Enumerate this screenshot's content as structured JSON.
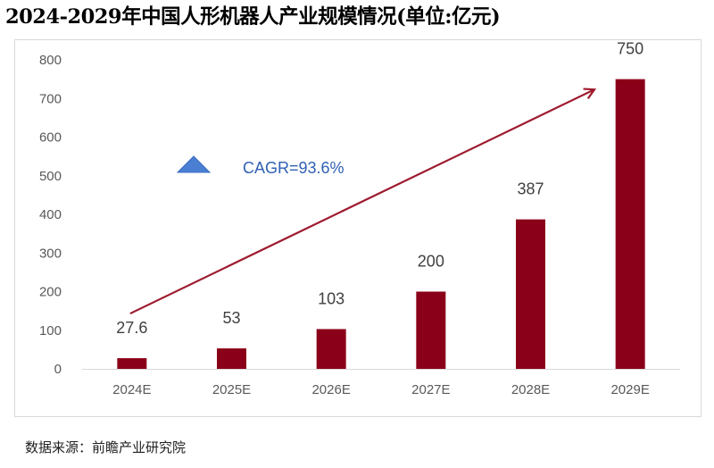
{
  "title": "2024-2029年中国人形机器人产业规模情况(单位:亿元)",
  "source": "数据来源：前瞻产业研究院",
  "colors": {
    "bar": "#8b0019",
    "arrow": "#9e1a2e",
    "triangle": "#4a7fd4",
    "cagr_text": "#2f5fb3",
    "axis_text": "#595959",
    "label_text": "#404040"
  },
  "icons": {
    "triangle": "triangle-marker-icon"
  },
  "chart_data": {
    "type": "bar",
    "title": "2024-2029年中国人形机器人产业规模情况(单位:亿元)",
    "categories": [
      "2024E",
      "2025E",
      "2026E",
      "2027E",
      "2028E",
      "2029E"
    ],
    "values": [
      27.6,
      53,
      103,
      200,
      387,
      750
    ],
    "data_labels": [
      "27.6",
      "53",
      "103",
      "200",
      "387",
      "750"
    ],
    "ylim": [
      0,
      800
    ],
    "yticks": [
      "0",
      "100",
      "200",
      "300",
      "400",
      "500",
      "600",
      "700",
      "800"
    ],
    "xlabel": "",
    "ylabel": "",
    "grid": false,
    "annotations": [
      {
        "text": "CAGR=93.6%",
        "kind": "trend-arrow"
      }
    ]
  }
}
